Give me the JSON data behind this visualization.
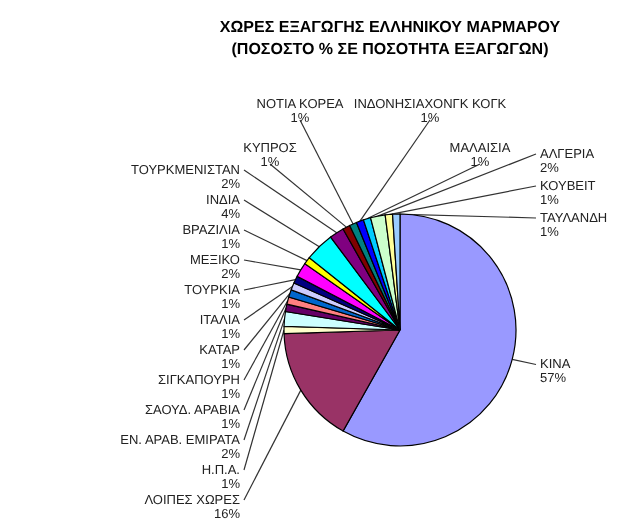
{
  "chart_data": {
    "type": "pie",
    "title": "ΧΩΡΕΣ ΕΞΑΓΩΓΗΣ ΕΛΛΗΝΙΚΟΥ ΜΑΡΜΑΡΟΥ",
    "subtitle": "(ΠΟΣΟΣΤΟ % ΣΕ ΠΟΣΟΤΗΤΑ ΕΞΑΓΩΓΩΝ)",
    "categories": [
      "ΚΙΝΑ",
      "ΛΟΙΠΕΣ ΧΩΡΕΣ",
      "Η.Π.Α.",
      "ΕΝ. ΑΡΑΒ. ΕΜΙΡΑΤΑ",
      "ΣΑΟΥΔ. ΑΡΑΒΙΑ",
      "ΣΙΓΚΑΠΟΥΡΗ",
      "ΚΑΤΑΡ",
      "ΙΤΑΛΙΑ",
      "ΤΟΥΡΚΙΑ",
      "ΜΕΞΙΚΟ",
      "ΒΡΑΖΙΛΙΑ",
      "ΙΝΔΙΑ",
      "ΤΟΥΡΚΜΕΝΙΣΤΑΝ",
      "ΚΥΠΡΟΣ",
      "ΝΟΤΙΑ ΚΟΡΕΑ",
      "ΙΝΔΟΝΗΣΙΑΧΟΝΓΚ ΚΟΓΚ",
      "ΜΑΛΑΙΣΙΑ",
      "ΑΛΓΕΡΙΑ",
      "ΚΟΥΒΕΙΤ",
      "ΤΑΥΛΑΝΔΗ"
    ],
    "values": [
      57,
      16,
      1,
      2,
      1,
      1,
      1,
      1,
      1,
      2,
      1,
      4,
      2,
      1,
      1,
      1,
      1,
      2,
      1,
      1
    ],
    "value_labels": [
      "57%",
      "16%",
      "1%",
      "2%",
      "1%",
      "1%",
      "1%",
      "1%",
      "1%",
      "2%",
      "1%",
      "4%",
      "2%",
      "1%",
      "1%",
      "1%",
      "1%",
      "2%",
      "1%",
      "1%"
    ],
    "colors": [
      "#9999ff",
      "#993366",
      "#ffffcc",
      "#ccffff",
      "#660066",
      "#ff8080",
      "#0066cc",
      "#ccccff",
      "#000080",
      "#ff00ff",
      "#ffff00",
      "#00ffff",
      "#800080",
      "#800000",
      "#008080",
      "#0000ff",
      "#00ccff",
      "#ccffcc",
      "#ffff99",
      "#99ccff"
    ]
  }
}
